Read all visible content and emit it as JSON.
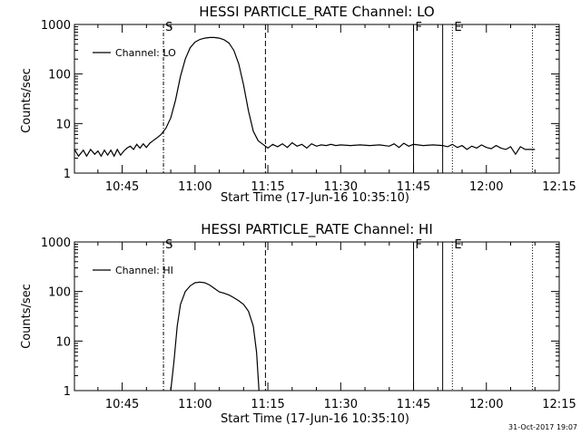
{
  "timestamp": "31-Oct-2017 19:07",
  "chart_data": [
    {
      "type": "line",
      "title": "HESSI PARTICLE_RATE Channel: LO",
      "xlabel": "Start Time (17-Jun-16 10:35:10)",
      "ylabel": "Counts/sec",
      "yscale": "log",
      "ylim": [
        1,
        1000
      ],
      "xlim": [
        "10:35:10",
        "12:15:00"
      ],
      "x_ticks": [
        "10:45",
        "11:00",
        "11:15",
        "11:30",
        "11:45",
        "12:00",
        "12:15"
      ],
      "y_ticks": [
        "1",
        "10",
        "100",
        "1000"
      ],
      "legend": "Channel: LO",
      "legend_position": "top-left",
      "markers": [
        {
          "time": "10:53:30",
          "label": "S",
          "style": "dash-dot"
        },
        {
          "time": "11:14:30",
          "label": "",
          "style": "dashed"
        },
        {
          "time": "11:45:00",
          "label": "F",
          "style": "solid"
        },
        {
          "time": "11:51:00",
          "label": "",
          "style": "solid"
        },
        {
          "time": "11:53:00",
          "label": "E",
          "style": "dotted"
        },
        {
          "time": "12:09:30",
          "label": "",
          "style": "dotted"
        }
      ],
      "series": [
        {
          "name": "Channel: LO",
          "points": [
            [
              "10:35:10",
              3.0
            ],
            [
              "10:36:00",
              2.2
            ],
            [
              "10:37:00",
              2.9
            ],
            [
              "10:37:40",
              2.2
            ],
            [
              "10:38:30",
              3.0
            ],
            [
              "10:39:20",
              2.4
            ],
            [
              "10:40:00",
              2.8
            ],
            [
              "10:40:40",
              2.2
            ],
            [
              "10:41:20",
              2.9
            ],
            [
              "10:42:00",
              2.3
            ],
            [
              "10:42:40",
              2.9
            ],
            [
              "10:43:20",
              2.2
            ],
            [
              "10:44:00",
              3.0
            ],
            [
              "10:44:40",
              2.3
            ],
            [
              "10:45:20",
              2.8
            ],
            [
              "10:46:00",
              3.2
            ],
            [
              "10:46:40",
              3.5
            ],
            [
              "10:47:20",
              3.0
            ],
            [
              "10:48:00",
              3.8
            ],
            [
              "10:48:40",
              3.2
            ],
            [
              "10:49:20",
              3.9
            ],
            [
              "10:50:00",
              3.3
            ],
            [
              "10:50:40",
              4.0
            ],
            [
              "10:51:20",
              4.5
            ],
            [
              "10:52:00",
              5.0
            ],
            [
              "10:53:00",
              6.0
            ],
            [
              "10:54:00",
              8.0
            ],
            [
              "10:55:00",
              13.0
            ],
            [
              "10:56:00",
              30.0
            ],
            [
              "10:57:00",
              90.0
            ],
            [
              "10:58:00",
              200.0
            ],
            [
              "10:59:00",
              340.0
            ],
            [
              "11:00:00",
              440.0
            ],
            [
              "11:01:00",
              500.0
            ],
            [
              "11:02:00",
              530.0
            ],
            [
              "11:03:00",
              545.0
            ],
            [
              "11:04:00",
              545.0
            ],
            [
              "11:05:00",
              530.0
            ],
            [
              "11:06:00",
              490.0
            ],
            [
              "11:07:00",
              420.0
            ],
            [
              "11:08:00",
              300.0
            ],
            [
              "11:09:00",
              160.0
            ],
            [
              "11:10:00",
              60.0
            ],
            [
              "11:11:00",
              18.0
            ],
            [
              "11:12:00",
              7.0
            ],
            [
              "11:13:00",
              4.5
            ],
            [
              "11:14:00",
              3.8
            ],
            [
              "11:15:00",
              3.2
            ],
            [
              "11:16:00",
              3.8
            ],
            [
              "11:17:00",
              3.4
            ],
            [
              "11:18:00",
              3.9
            ],
            [
              "11:19:00",
              3.3
            ],
            [
              "11:20:00",
              4.1
            ],
            [
              "11:21:00",
              3.5
            ],
            [
              "11:22:00",
              3.8
            ],
            [
              "11:23:00",
              3.2
            ],
            [
              "11:24:00",
              3.9
            ],
            [
              "11:25:00",
              3.5
            ],
            [
              "11:26:00",
              3.7
            ],
            [
              "11:27:00",
              3.6
            ],
            [
              "11:28:00",
              3.8
            ],
            [
              "11:29:00",
              3.6
            ],
            [
              "11:30:00",
              3.7
            ],
            [
              "11:32:00",
              3.6
            ],
            [
              "11:34:00",
              3.7
            ],
            [
              "11:36:00",
              3.6
            ],
            [
              "11:38:00",
              3.7
            ],
            [
              "11:40:00",
              3.5
            ],
            [
              "11:41:00",
              3.9
            ],
            [
              "11:42:00",
              3.3
            ],
            [
              "11:43:00",
              4.0
            ],
            [
              "11:44:00",
              3.5
            ],
            [
              "11:45:00",
              3.8
            ],
            [
              "11:47:00",
              3.6
            ],
            [
              "11:49:00",
              3.7
            ],
            [
              "11:51:00",
              3.6
            ],
            [
              "11:52:00",
              3.4
            ],
            [
              "11:53:00",
              3.8
            ],
            [
              "11:54:00",
              3.3
            ],
            [
              "11:55:00",
              3.6
            ],
            [
              "11:56:00",
              3.0
            ],
            [
              "11:57:00",
              3.5
            ],
            [
              "11:58:00",
              3.2
            ],
            [
              "11:59:00",
              3.7
            ],
            [
              "12:00:00",
              3.3
            ],
            [
              "12:01:00",
              3.1
            ],
            [
              "12:02:00",
              3.6
            ],
            [
              "12:03:00",
              3.2
            ],
            [
              "12:04:00",
              3.0
            ],
            [
              "12:05:00",
              3.4
            ],
            [
              "12:06:00",
              2.4
            ],
            [
              "12:07:00",
              3.4
            ],
            [
              "12:08:00",
              3.0
            ],
            [
              "12:10:00",
              3.0
            ]
          ]
        }
      ]
    },
    {
      "type": "line",
      "title": "HESSI PARTICLE_RATE Channel: HI",
      "xlabel": "Start Time (17-Jun-16 10:35:10)",
      "ylabel": "Counts/sec",
      "yscale": "log",
      "ylim": [
        1,
        1000
      ],
      "xlim": [
        "10:35:10",
        "12:15:00"
      ],
      "x_ticks": [
        "10:45",
        "11:00",
        "11:15",
        "11:30",
        "11:45",
        "12:00",
        "12:15"
      ],
      "y_ticks": [
        "1",
        "10",
        "100",
        "1000"
      ],
      "legend": "Channel: HI",
      "legend_position": "top-left",
      "markers": [
        {
          "time": "10:53:30",
          "label": "S",
          "style": "dash-dot"
        },
        {
          "time": "11:14:30",
          "label": "",
          "style": "dashed"
        },
        {
          "time": "11:45:00",
          "label": "F",
          "style": "solid"
        },
        {
          "time": "11:51:00",
          "label": "",
          "style": "solid"
        },
        {
          "time": "11:53:00",
          "label": "E",
          "style": "dotted"
        },
        {
          "time": "12:09:30",
          "label": "",
          "style": "dotted"
        }
      ],
      "series": [
        {
          "name": "Channel: HI",
          "points": [
            [
              "10:55:00",
              1.0
            ],
            [
              "10:55:40",
              4.0
            ],
            [
              "10:56:20",
              20.0
            ],
            [
              "10:57:00",
              55.0
            ],
            [
              "10:58:00",
              100.0
            ],
            [
              "10:59:00",
              130.0
            ],
            [
              "11:00:00",
              150.0
            ],
            [
              "11:01:00",
              155.0
            ],
            [
              "11:02:00",
              150.0
            ],
            [
              "11:03:00",
              135.0
            ],
            [
              "11:04:00",
              115.0
            ],
            [
              "11:05:00",
              98.0
            ],
            [
              "11:06:00",
              92.0
            ],
            [
              "11:07:00",
              85.0
            ],
            [
              "11:08:00",
              75.0
            ],
            [
              "11:09:00",
              65.0
            ],
            [
              "11:10:00",
              55.0
            ],
            [
              "11:11:00",
              40.0
            ],
            [
              "11:12:00",
              20.0
            ],
            [
              "11:12:40",
              6.0
            ],
            [
              "11:13:10",
              1.0
            ]
          ]
        }
      ]
    }
  ]
}
